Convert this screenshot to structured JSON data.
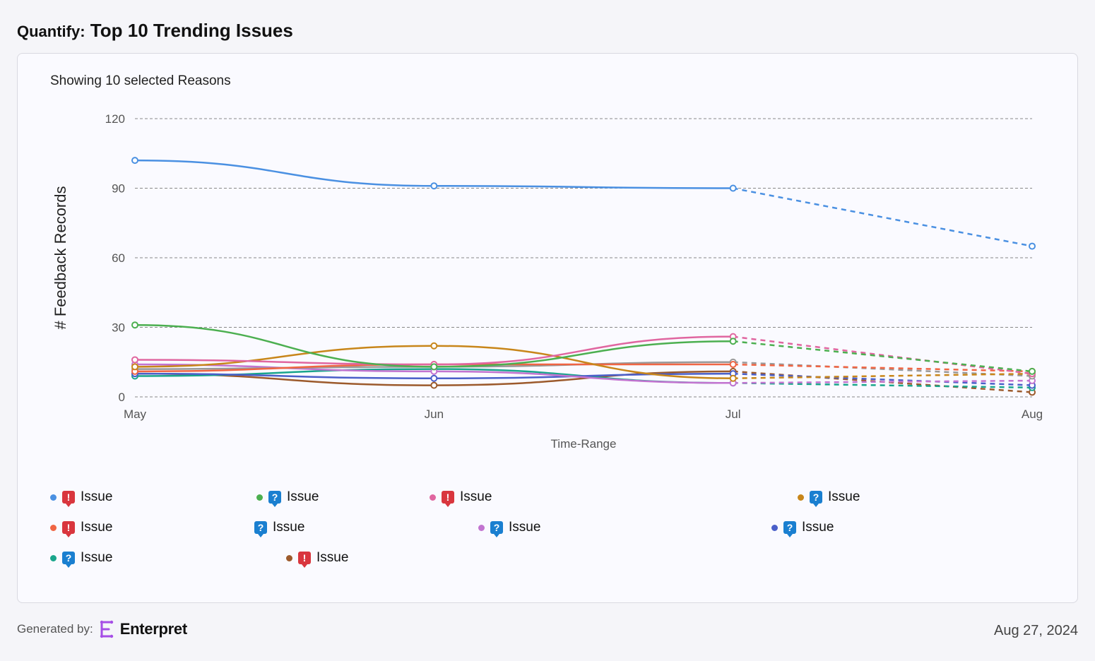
{
  "header": {
    "prefix": "Quantify:",
    "title": "Top 10 Trending Issues"
  },
  "card": {
    "subtitle": "Showing 10 selected Reasons"
  },
  "chart_data": {
    "type": "line",
    "x": [
      "May",
      "Jun",
      "Jul",
      "Aug"
    ],
    "xlabel": "Time-Range",
    "ylabel": "# Feedback Records",
    "ylim": [
      0,
      120
    ],
    "yticks": [
      0,
      30,
      60,
      90,
      120
    ],
    "grid": true,
    "projected_from_index": 2,
    "series": [
      {
        "color": "#4a90e2",
        "values": [
          102,
          91,
          90,
          65
        ]
      },
      {
        "color": "#4caf50",
        "values": [
          31,
          13,
          24,
          11
        ]
      },
      {
        "color": "#e066a0",
        "values": [
          16,
          14,
          26,
          10
        ]
      },
      {
        "color": "#c8861a",
        "values": [
          13,
          22,
          8,
          10
        ]
      },
      {
        "color": "#f06543",
        "values": [
          11,
          14,
          14,
          11
        ]
      },
      {
        "color": "#999999",
        "values": [
          12,
          13,
          15,
          9
        ]
      },
      {
        "color": "#c274d0",
        "values": [
          14,
          11,
          6,
          7
        ]
      },
      {
        "color": "#4a5fc9",
        "values": [
          10,
          8,
          10,
          5
        ]
      },
      {
        "color": "#1aa58c",
        "values": [
          9,
          12,
          6,
          4
        ]
      },
      {
        "color": "#9c5a2c",
        "values": [
          10,
          5,
          11,
          2
        ]
      }
    ]
  },
  "legend": [
    {
      "dot_color": "#4a90e2",
      "badge": "alert",
      "label": "Issue"
    },
    {
      "dot_color": "#4caf50",
      "badge": "question",
      "label": "Issue"
    },
    {
      "dot_color": "#e066a0",
      "badge": "alert",
      "label": "Issue"
    },
    {
      "dot_color": "#c8861a",
      "badge": "question",
      "label": "Issue"
    },
    {
      "dot_color": "#f06543",
      "badge": "alert",
      "label": "Issue"
    },
    {
      "dot_color": "",
      "badge": "question",
      "label": "Issue"
    },
    {
      "dot_color": "#c274d0",
      "badge": "question",
      "label": "Issue"
    },
    {
      "dot_color": "#4a5fc9",
      "badge": "question",
      "label": "Issue"
    },
    {
      "dot_color": "#1aa58c",
      "badge": "question",
      "label": "Issue"
    },
    {
      "dot_color": "#9c5a2c",
      "badge": "alert",
      "label": "Issue"
    }
  ],
  "footer": {
    "generated_by": "Generated by:",
    "brand": "Enterpret",
    "date": "Aug 27, 2024"
  }
}
